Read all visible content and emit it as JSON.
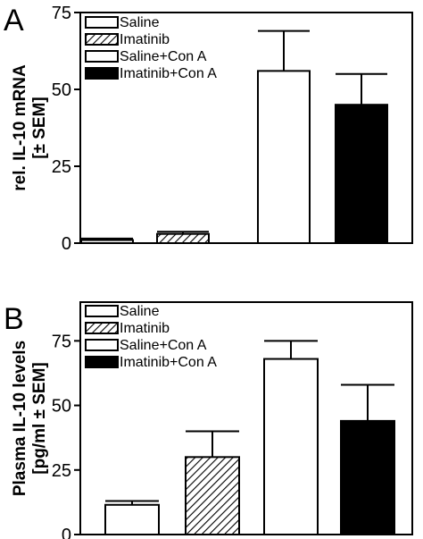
{
  "chart_data": [
    {
      "panel_label": "A",
      "type": "bar",
      "categories": [
        "Saline",
        "Imatinib",
        "Saline+Con A",
        "Imatinib+Con A"
      ],
      "values": [
        1,
        3,
        56,
        45
      ],
      "errors": [
        0.5,
        0.7,
        13,
        10
      ],
      "ylabel": [
        "rel. IL-10 mRNA",
        "[± SEM]"
      ],
      "xlabel": "",
      "ylim": [
        0,
        75
      ],
      "yticks": [
        "0",
        "25",
        "50",
        "75"
      ],
      "legend": [
        "Saline",
        "Imatinib",
        "Saline+Con A",
        "Imatinib+Con A"
      ],
      "legend_placement": "top-left",
      "fills": [
        "white",
        "hatched",
        "white",
        "black"
      ],
      "grid": false
    },
    {
      "panel_label": "B",
      "type": "bar",
      "categories": [
        "Saline",
        "Imatinib",
        "Saline+Con A",
        "Imatinib+Con A"
      ],
      "values": [
        11.5,
        30,
        68,
        44
      ],
      "errors": [
        1.5,
        10,
        7,
        14
      ],
      "ylabel": [
        "Plasma IL-10 levels",
        "[pg/ml ± SEM]"
      ],
      "xlabel": "",
      "ylim": [
        0,
        90
      ],
      "yticks": [
        "0",
        "25",
        "50",
        "75"
      ],
      "legend": [
        "Saline",
        "Imatinib",
        "Saline+Con A",
        "Imatinib+Con A"
      ],
      "legend_placement": "top-left",
      "fills": [
        "white",
        "hatched",
        "white",
        "black"
      ],
      "grid": false
    }
  ]
}
